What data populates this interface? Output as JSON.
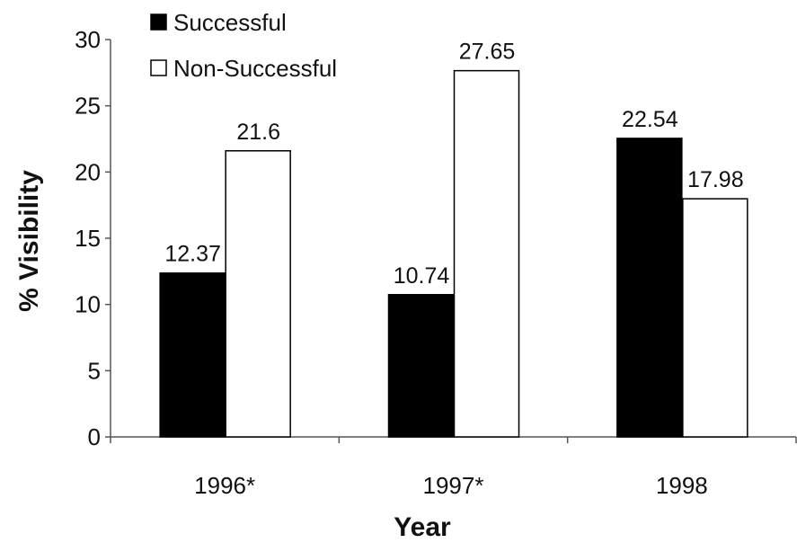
{
  "chart_data": {
    "type": "bar",
    "title": "",
    "xlabel": "Year",
    "ylabel": "% Visibility",
    "categories": [
      "1996*",
      "1997*",
      "1998"
    ],
    "series": [
      {
        "name": "Successful",
        "values": [
          12.37,
          10.74,
          22.54
        ],
        "color": "#000000"
      },
      {
        "name": "Non-Successful",
        "values": [
          21.6,
          27.65,
          17.98
        ],
        "color": "#ffffff"
      }
    ],
    "data_labels": [
      [
        "12.37",
        "10.74",
        "22.54"
      ],
      [
        "21.6",
        "27.65",
        "17.98"
      ]
    ],
    "ylim": [
      0,
      30
    ],
    "yticks": [
      "0",
      "5",
      "10",
      "15",
      "20",
      "25",
      "30"
    ],
    "ytick_values": [
      0,
      5,
      10,
      15,
      20,
      25,
      30
    ],
    "grid": false,
    "legend_position": "top-left"
  }
}
